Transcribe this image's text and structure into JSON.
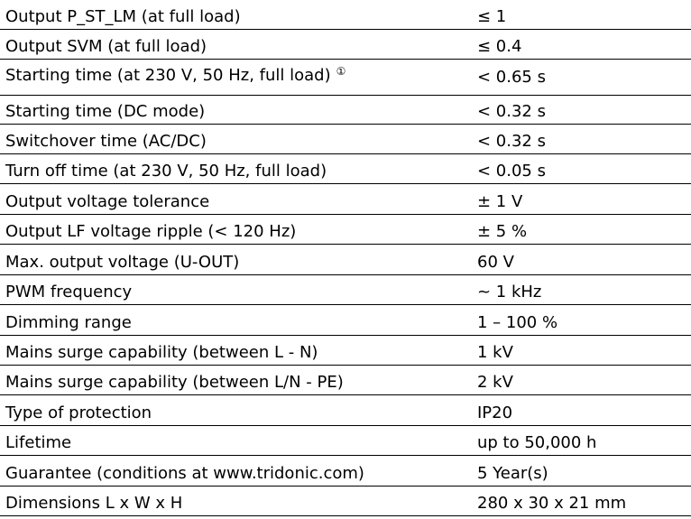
{
  "specs": [
    {
      "label": "Output P_ST_LM (at full load)",
      "value": "≤ 1"
    },
    {
      "label": "Output SVM (at full load)",
      "value": "≤ 0.4"
    },
    {
      "label": "Starting time (at 230 V, 50 Hz, full load)",
      "footnote": "①",
      "value": "< 0.65 s"
    },
    {
      "label": "Starting time (DC mode)",
      "value": "< 0.32 s"
    },
    {
      "label": "Switchover time (AC/DC)",
      "value": "< 0.32 s"
    },
    {
      "label": "Turn off time (at 230 V, 50 Hz, full load)",
      "value": "< 0.05 s"
    },
    {
      "label": "Output voltage tolerance",
      "value": "± 1 V"
    },
    {
      "label": "Output LF voltage ripple (< 120 Hz)",
      "value": "± 5 %"
    },
    {
      "label": "Max. output voltage (U-OUT)",
      "value": "60 V"
    },
    {
      "label": "PWM frequency",
      "value": "~ 1 kHz"
    },
    {
      "label": "Dimming range",
      "value": "1 – 100 %"
    },
    {
      "label": "Mains surge capability (between L - N)",
      "value": "1 kV"
    },
    {
      "label": "Mains surge capability (between L/N - PE)",
      "value": "2 kV"
    },
    {
      "label": "Type of protection",
      "value": "IP20"
    },
    {
      "label": "Lifetime",
      "value": "up to 50,000 h"
    },
    {
      "label": "Guarantee (conditions at www.tridonic.com)",
      "value": "5 Year(s)"
    },
    {
      "label": "Dimensions L x W x H",
      "value": "280 x 30 x 21 mm"
    }
  ]
}
